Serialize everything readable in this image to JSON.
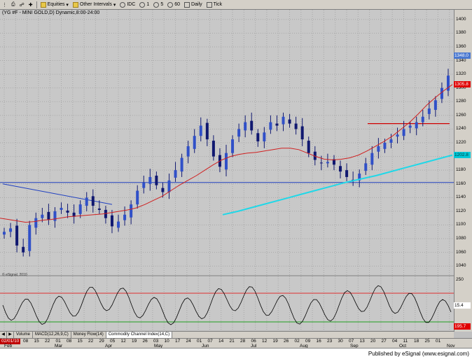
{
  "toolbar": {
    "items": [
      {
        "label": "Equities",
        "icon": "folder-icon"
      },
      {
        "label": "Other Intervals",
        "icon": "folder-icon"
      },
      {
        "label": "IDC"
      },
      {
        "label": "1"
      },
      {
        "label": "5"
      },
      {
        "label": "60"
      },
      {
        "label": "Daily"
      },
      {
        "label": "Tick"
      }
    ]
  },
  "chart": {
    "title": "(YG #F - MINI GOLD,D) Dynamic,8:00-24:00",
    "copyright": "© eSignal, 2010",
    "price_ticks": [
      "1400",
      "1380",
      "1360",
      "1340",
      "1320",
      "1300",
      "1280",
      "1260",
      "1240",
      "1220",
      "1200",
      "1180",
      "1160",
      "1140",
      "1120",
      "1100",
      "1080",
      "1060",
      "1040"
    ],
    "osc_ticks": [
      "250",
      "0",
      "-250"
    ],
    "price_tags": [
      {
        "label": "1348.0",
        "color": "#4a78d0"
      },
      {
        "label": "1305.8",
        "color": "#e00000"
      },
      {
        "label": "1202.8",
        "color": "#00c8d8"
      }
    ],
    "osc_tags": [
      {
        "label": "15.4",
        "color": "#ffffff"
      },
      {
        "label": "195.7",
        "color": "#e00000"
      }
    ],
    "date_label": "02/01/10",
    "day_labels": [
      "08",
      "15",
      "22",
      "01",
      "08",
      "15",
      "22",
      "29",
      "05",
      "12",
      "19",
      "26",
      "03",
      "10",
      "17",
      "24",
      "01",
      "07",
      "14",
      "21",
      "28",
      "06",
      "12",
      "19",
      "26",
      "02",
      "09",
      "16",
      "23",
      "30",
      "07",
      "13",
      "20",
      "27",
      "04",
      "11",
      "18",
      "25",
      "01"
    ],
    "month_labels": [
      "Feb",
      "Mar",
      "Apr",
      "May",
      "Jun",
      "Jul",
      "Aug",
      "Sep",
      "Oct",
      "Nov"
    ]
  },
  "chart_data": {
    "type": "candlestick",
    "symbol": "YG #F - MINI GOLD",
    "interval": "Daily",
    "ylim": [
      1030,
      1410
    ],
    "series": [
      {
        "name": "price",
        "values": [
          1090,
          1095,
          1070,
          1060,
          1100,
          1110,
          1115,
          1108,
          1120,
          1125,
          1118,
          1112,
          1130,
          1140,
          1128,
          1122,
          1110,
          1098,
          1105,
          1115,
          1130,
          1150,
          1162,
          1170,
          1158,
          1148,
          1165,
          1180,
          1198,
          1215,
          1230,
          1245,
          1225,
          1200,
          1185,
          1205,
          1225,
          1240,
          1250,
          1238,
          1222,
          1235,
          1250,
          1245,
          1258,
          1248,
          1240,
          1225,
          1205,
          1195,
          1190,
          1192,
          1188,
          1178,
          1170,
          1165,
          1175,
          1190,
          1205,
          1215,
          1220,
          1225,
          1232,
          1240,
          1245,
          1250,
          1258,
          1270,
          1282,
          1300,
          1318,
          1332,
          1345,
          1360,
          1385,
          1370,
          1352,
          1335,
          1325,
          1330,
          1348,
          1352,
          1356,
          1360
        ]
      },
      {
        "name": "sma_50",
        "values": [
          1110,
          1108,
          1106,
          1104,
          1105,
          1107,
          1108,
          1110,
          1112,
          1113,
          1114,
          1115,
          1116,
          1118,
          1120,
          1122,
          1125,
          1130,
          1136,
          1142,
          1150,
          1158,
          1165,
          1172,
          1180,
          1188,
          1195,
          1200,
          1203,
          1205,
          1206,
          1208,
          1210,
          1212,
          1212,
          1210,
          1205,
          1200,
          1196,
          1195,
          1196,
          1198,
          1202,
          1208,
          1215,
          1222,
          1230,
          1240,
          1250,
          1262,
          1275,
          1286,
          1296,
          1305
        ]
      },
      {
        "name": "sma_200",
        "values": [
          1115,
          1120,
          1126,
          1132,
          1138,
          1144,
          1150,
          1156,
          1162,
          1167,
          1172,
          1178,
          1184,
          1190,
          1196,
          1202
        ]
      }
    ],
    "hlines": [
      1162,
      1248
    ],
    "oscillator": {
      "name": "Commodity Channel Index (14,C)",
      "levels": [
        100,
        -100
      ],
      "last": 15.4
    }
  },
  "tabs": [
    "Volume",
    "MACD(12,26,9,C)",
    "Money Flow(14)",
    "Commodity Channel Index(14,C)"
  ],
  "status": "Published by eSignal (www.esignal.com)"
}
